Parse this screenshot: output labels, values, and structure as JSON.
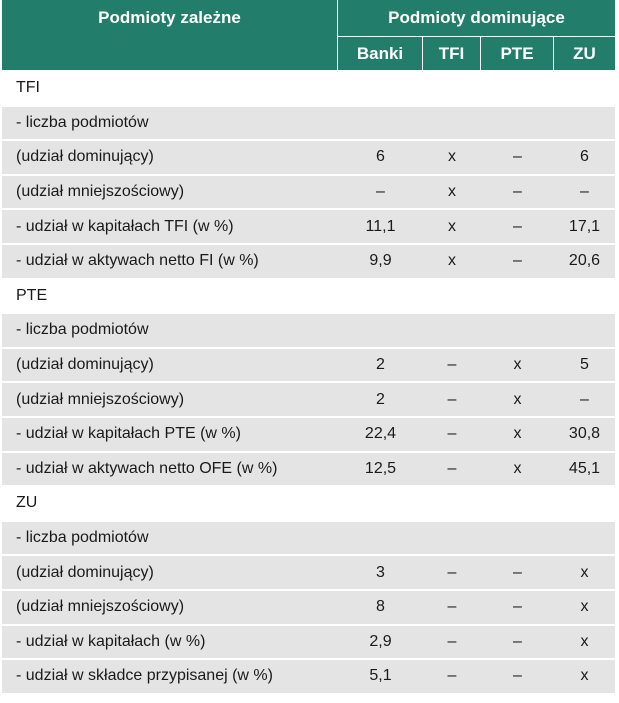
{
  "header": {
    "left_title": "Podmioty zależne",
    "right_title": "Podmioty dominujące",
    "columns": [
      "Banki",
      "TFI",
      "PTE",
      "ZU"
    ]
  },
  "rows": [
    {
      "type": "section",
      "label": "TFI",
      "values": [
        "",
        "",
        "",
        ""
      ]
    },
    {
      "type": "row",
      "label": "- liczba podmiotów",
      "values": [
        "",
        "",
        "",
        ""
      ]
    },
    {
      "type": "row",
      "label": "(udział dominujący)",
      "values": [
        "6",
        "x",
        "–",
        "6"
      ]
    },
    {
      "type": "row",
      "label": "(udział mniejszościowy)",
      "values": [
        "–",
        "x",
        "–",
        "–"
      ]
    },
    {
      "type": "row",
      "label": "- udział w kapitałach TFI (w %)",
      "values": [
        "11,1",
        "x",
        "–",
        "17,1"
      ]
    },
    {
      "type": "row",
      "label": "- udział w aktywach netto FI (w %)",
      "values": [
        "9,9",
        "x",
        "–",
        "20,6"
      ]
    },
    {
      "type": "section",
      "label": "PTE",
      "values": [
        "",
        "",
        "",
        ""
      ]
    },
    {
      "type": "row",
      "label": "- liczba podmiotów",
      "values": [
        "",
        "",
        "",
        ""
      ]
    },
    {
      "type": "row",
      "label": "(udział dominujący)",
      "values": [
        "2",
        "–",
        "x",
        "5"
      ]
    },
    {
      "type": "row",
      "label": "(udział mniejszościowy)",
      "values": [
        "2",
        "–",
        "x",
        "–"
      ]
    },
    {
      "type": "row",
      "label": "- udział w kapitałach PTE (w %)",
      "values": [
        "22,4",
        "–",
        "x",
        "30,8"
      ]
    },
    {
      "type": "row",
      "label": "- udział w aktywach netto OFE (w %)",
      "values": [
        "12,5",
        "–",
        "x",
        "45,1"
      ]
    },
    {
      "type": "section",
      "label": "ZU",
      "values": [
        "",
        "",
        "",
        ""
      ]
    },
    {
      "type": "row",
      "label": "- liczba podmiotów",
      "values": [
        "",
        "",
        "",
        ""
      ]
    },
    {
      "type": "row",
      "label": "(udział dominujący)",
      "values": [
        "3",
        "–",
        "–",
        "x"
      ]
    },
    {
      "type": "row",
      "label": "(udział mniejszościowy)",
      "values": [
        "8",
        "–",
        "–",
        "x"
      ]
    },
    {
      "type": "row",
      "label": "- udział w kapitałach (w %)",
      "values": [
        "2,9",
        "–",
        "–",
        "x"
      ]
    },
    {
      "type": "row",
      "label": "- udział w składce przypisanej (w %)",
      "values": [
        "5,1",
        "–",
        "–",
        "x"
      ]
    }
  ],
  "colors": {
    "header_bg": "#237d6b",
    "header_text": "#ffffff",
    "row_shade": "#e4e4e4"
  }
}
